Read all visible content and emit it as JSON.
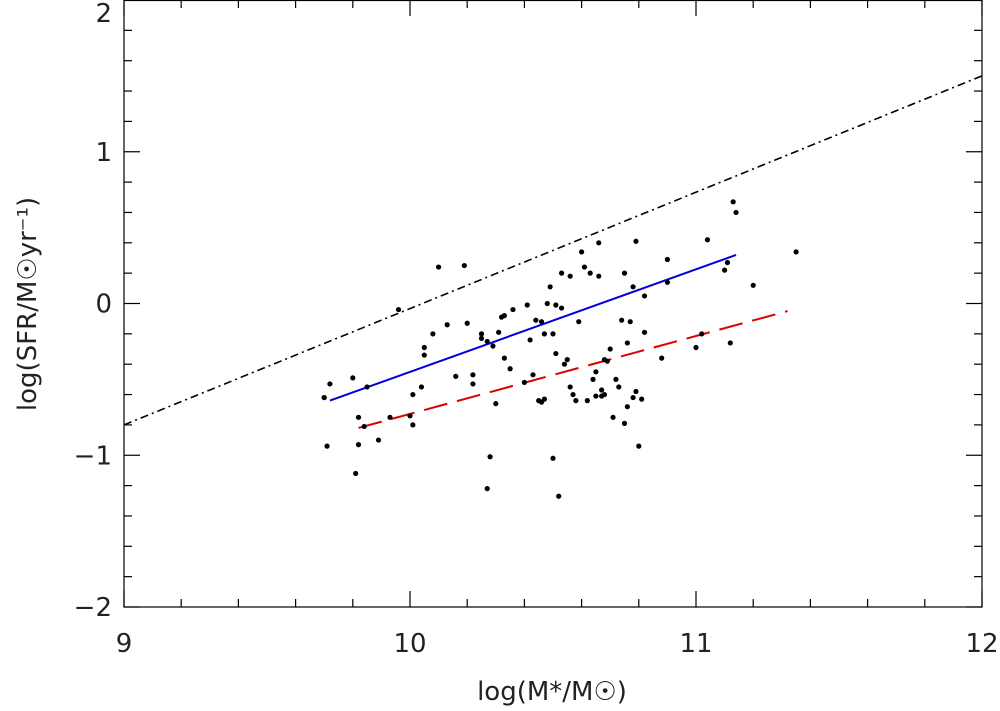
{
  "chart_data": {
    "type": "scatter",
    "title": "",
    "xlabel": "log(M*/M☉)",
    "ylabel": "log(SFR/M☉yr⁻¹)",
    "xlim": [
      9,
      12
    ],
    "ylim": [
      -2,
      2
    ],
    "x_ticks": [
      9,
      10,
      11,
      12
    ],
    "y_ticks": [
      -2,
      -1,
      0,
      1,
      2
    ],
    "x_tick_labels": [
      "9",
      "10",
      "11",
      "12"
    ],
    "y_tick_labels": [
      "−2",
      "−1",
      "0",
      "1",
      "2"
    ],
    "grid": false,
    "legend": "none",
    "colors": {
      "points": "#000000",
      "fit_solid": "#0000dd",
      "fit_dashed": "#dd0000",
      "reference": "#000000"
    },
    "series": [
      {
        "style": "points",
        "x": [
          9.7,
          9.71,
          9.72,
          9.7,
          9.8,
          9.82,
          9.82,
          9.84,
          9.85,
          9.81,
          9.89,
          9.93,
          9.96,
          10.0,
          10.01,
          10.01,
          10.04,
          10.05,
          10.05,
          10.08,
          10.1,
          10.13,
          10.16,
          10.19,
          10.2,
          10.22,
          10.22,
          10.25,
          10.25,
          10.27,
          10.27,
          10.28,
          10.29,
          10.3,
          10.31,
          10.32,
          10.33,
          10.33,
          10.35,
          10.36,
          10.4,
          10.41,
          10.42,
          10.43,
          10.44,
          10.45,
          10.46,
          10.46,
          10.47,
          10.47,
          10.48,
          10.49,
          10.5,
          10.5,
          10.51,
          10.51,
          10.52,
          10.53,
          10.53,
          10.54,
          10.55,
          10.56,
          10.56,
          10.57,
          10.58,
          10.59,
          10.6,
          10.61,
          10.62,
          10.63,
          10.64,
          10.65,
          10.65,
          10.66,
          10.66,
          10.67,
          10.67,
          10.68,
          10.68,
          10.69,
          10.7,
          10.71,
          10.72,
          10.73,
          10.74,
          10.75,
          10.75,
          10.76,
          10.76,
          10.77,
          10.78,
          10.78,
          10.79,
          10.79,
          10.8,
          10.81,
          10.82,
          10.82,
          10.88,
          10.9,
          10.9,
          11.0,
          11.02,
          11.04,
          11.1,
          11.11,
          11.12,
          11.13,
          11.14,
          11.2,
          11.35
        ],
        "y": [
          -0.62,
          -0.94,
          -0.53,
          -0.62,
          -0.49,
          -0.93,
          -0.75,
          -0.81,
          -0.55,
          -1.12,
          -0.9,
          -0.75,
          -0.04,
          -0.74,
          -0.8,
          -0.6,
          -0.55,
          -0.29,
          -0.34,
          -0.2,
          0.24,
          -0.14,
          -0.48,
          0.25,
          -0.13,
          -0.47,
          -0.53,
          -0.2,
          -0.23,
          -1.22,
          -0.25,
          -1.01,
          -0.28,
          -0.66,
          -0.19,
          -0.09,
          -0.08,
          -0.36,
          -0.43,
          -0.04,
          -0.52,
          -0.01,
          -0.24,
          -0.47,
          -0.11,
          -0.64,
          -0.65,
          -0.12,
          -0.2,
          -0.63,
          0.0,
          0.11,
          -0.2,
          -1.02,
          -0.01,
          -0.33,
          -1.27,
          0.2,
          -0.03,
          -0.4,
          -0.37,
          -0.55,
          0.18,
          -0.6,
          -0.64,
          -0.12,
          0.34,
          0.24,
          -0.64,
          0.2,
          -0.5,
          -0.45,
          -0.61,
          0.18,
          0.4,
          -0.57,
          -0.61,
          -0.37,
          -0.6,
          -0.38,
          -0.3,
          -0.75,
          -0.5,
          -0.55,
          -0.11,
          -0.79,
          0.2,
          -0.68,
          -0.26,
          -0.12,
          -0.62,
          0.11,
          -0.58,
          0.41,
          -0.94,
          -0.63,
          0.05,
          -0.19,
          -0.36,
          0.29,
          0.14,
          -0.29,
          -0.2,
          0.42,
          0.22,
          0.27,
          -0.26,
          0.67,
          0.6,
          0.12,
          0.34
        ]
      },
      {
        "style": "solid",
        "x": [
          9.72,
          11.14
        ],
        "y": [
          -0.64,
          0.32
        ]
      },
      {
        "style": "dashed",
        "x": [
          9.82,
          11.32
        ],
        "y": [
          -0.82,
          -0.05
        ]
      },
      {
        "style": "dash-dot",
        "x": [
          9.0,
          12.0
        ],
        "y": [
          -0.8,
          1.5
        ]
      }
    ]
  }
}
